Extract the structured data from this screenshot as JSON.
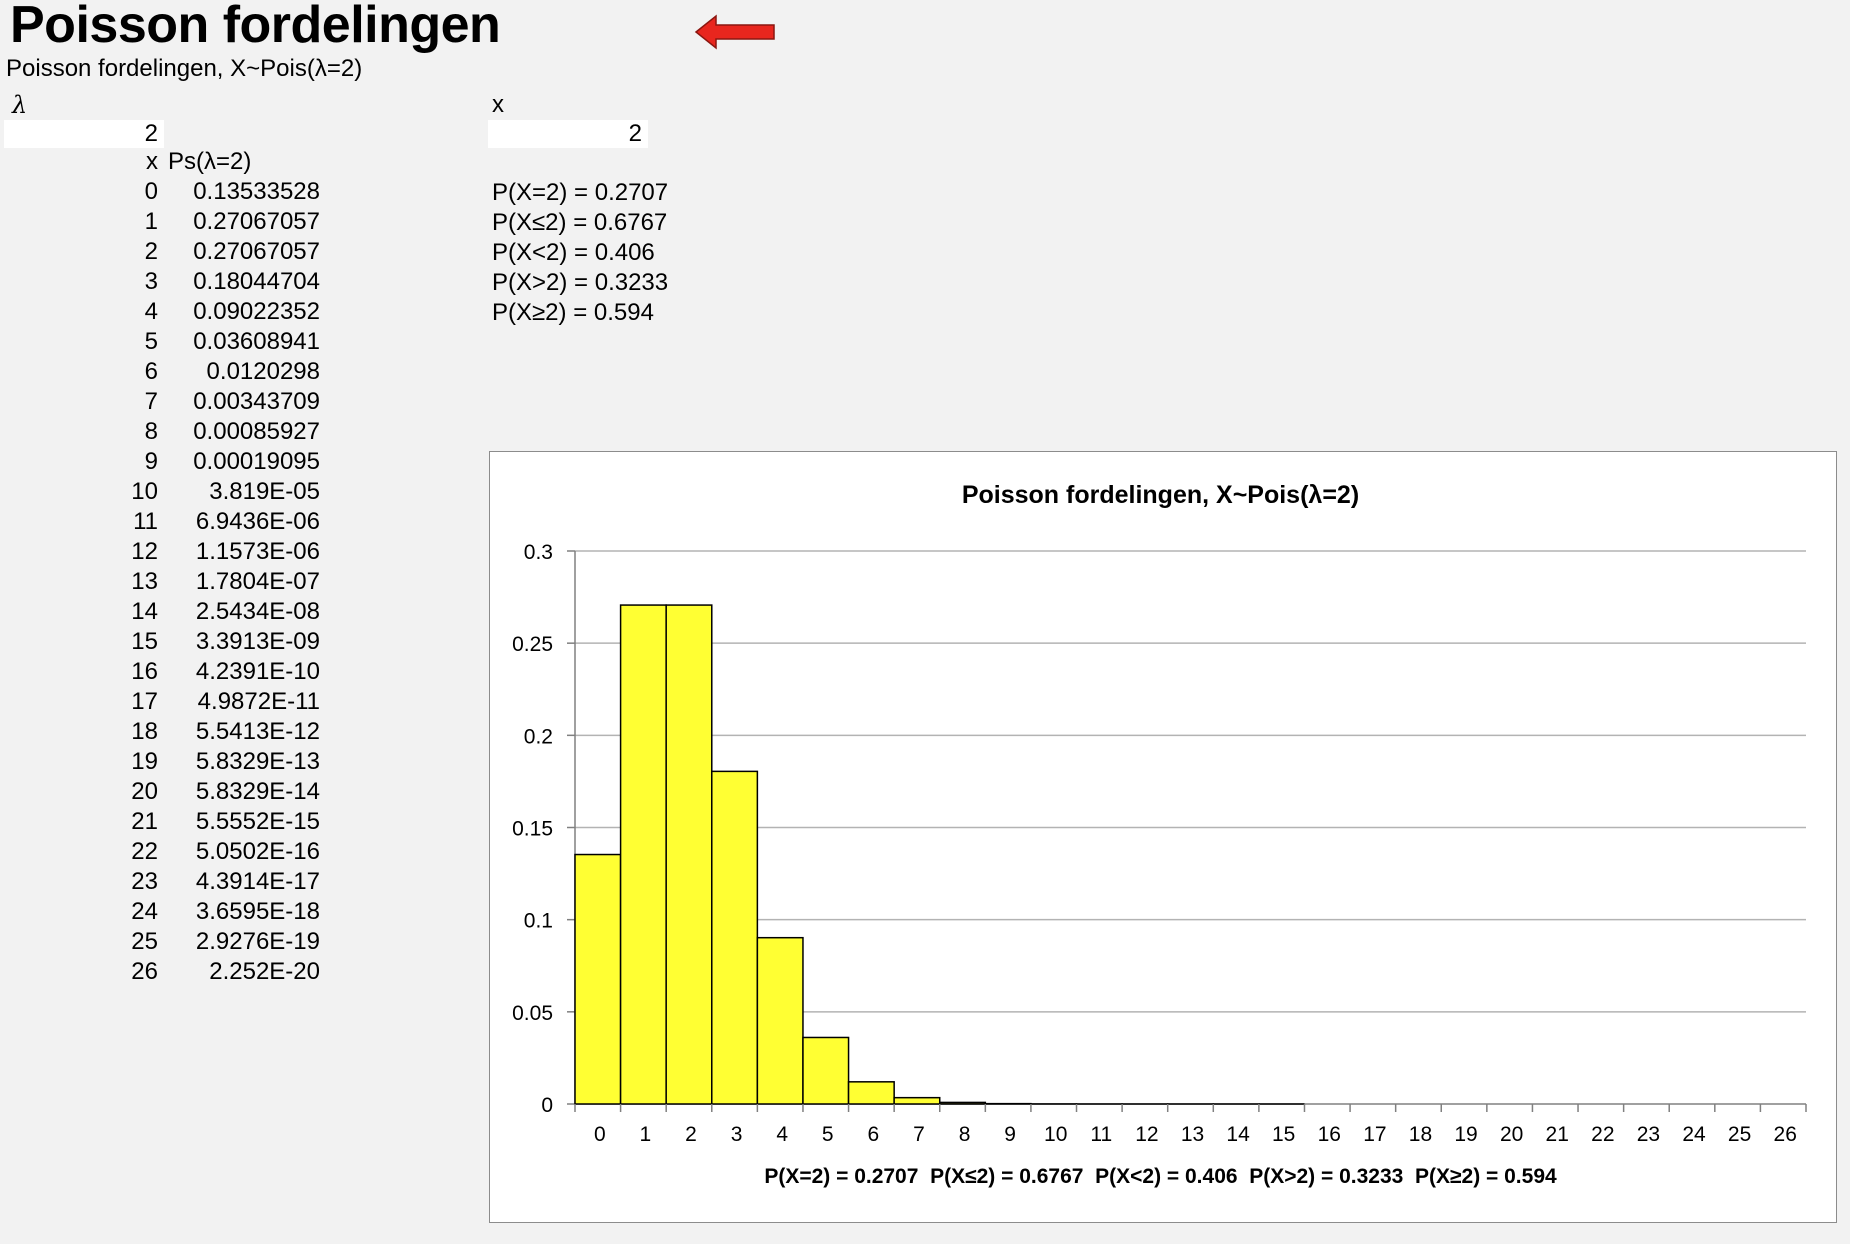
{
  "page": {
    "title": "Poisson fordelingen",
    "subtitle": "Poisson fordelingen, X~Pois(λ=2)"
  },
  "inputs": {
    "lambda_label": "λ",
    "lambda_value": "2",
    "x_label": "x",
    "x_value": "2"
  },
  "table": {
    "header_x": "x",
    "header_p": "Ps(λ=2)",
    "rows": [
      {
        "x": "0",
        "p": "0.13533528"
      },
      {
        "x": "1",
        "p": "0.27067057"
      },
      {
        "x": "2",
        "p": "0.27067057"
      },
      {
        "x": "3",
        "p": "0.18044704"
      },
      {
        "x": "4",
        "p": "0.09022352"
      },
      {
        "x": "5",
        "p": "0.03608941"
      },
      {
        "x": "6",
        "p": "0.0120298"
      },
      {
        "x": "7",
        "p": "0.00343709"
      },
      {
        "x": "8",
        "p": "0.00085927"
      },
      {
        "x": "9",
        "p": "0.00019095"
      },
      {
        "x": "10",
        "p": "3.819E-05"
      },
      {
        "x": "11",
        "p": "6.9436E-06"
      },
      {
        "x": "12",
        "p": "1.1573E-06"
      },
      {
        "x": "13",
        "p": "1.7804E-07"
      },
      {
        "x": "14",
        "p": "2.5434E-08"
      },
      {
        "x": "15",
        "p": "3.3913E-09"
      },
      {
        "x": "16",
        "p": "4.2391E-10"
      },
      {
        "x": "17",
        "p": "4.9872E-11"
      },
      {
        "x": "18",
        "p": "5.5413E-12"
      },
      {
        "x": "19",
        "p": "5.8329E-13"
      },
      {
        "x": "20",
        "p": "5.8329E-14"
      },
      {
        "x": "21",
        "p": "5.5552E-15"
      },
      {
        "x": "22",
        "p": "5.0502E-16"
      },
      {
        "x": "23",
        "p": "4.3914E-17"
      },
      {
        "x": "24",
        "p": "3.6595E-18"
      },
      {
        "x": "25",
        "p": "2.9276E-19"
      },
      {
        "x": "26",
        "p": "2.252E-20"
      }
    ]
  },
  "probabilities": {
    "eq": "P(X=2) = 0.2707",
    "le": "P(X≤2) = 0.6767",
    "lt": "P(X<2) = 0.406",
    "gt": "P(X>2) = 0.3233",
    "ge": "P(X≥2) = 0.594"
  },
  "colors": {
    "bar_fill": "#ffff33",
    "bar_stroke": "#000000",
    "gridline": "#b3b3b3",
    "arrow": "#e8261e",
    "background": "#f2f2f2"
  },
  "icons": {
    "arrow": "left-arrow-icon"
  },
  "chart_data": {
    "type": "bar",
    "title": "Poisson fordelingen, X~Pois(λ=2)",
    "xlabel": "P(X=2) = 0.2707  P(X≤2) = 0.6767  P(X<2) = 0.406  P(X>2) = 0.3233  P(X≥2) = 0.594",
    "ylabel": "",
    "categories": [
      "0",
      "1",
      "2",
      "3",
      "4",
      "5",
      "6",
      "7",
      "8",
      "9",
      "10",
      "11",
      "12",
      "13",
      "14",
      "15",
      "16",
      "17",
      "18",
      "19",
      "20",
      "21",
      "22",
      "23",
      "24",
      "25",
      "26"
    ],
    "values": [
      0.13533528,
      0.27067057,
      0.27067057,
      0.18044704,
      0.09022352,
      0.03608941,
      0.0120298,
      0.00343709,
      0.00085927,
      0.00019095,
      3.819e-05,
      6.9436e-06,
      1.1573e-06,
      1.7804e-07,
      2.5434e-08,
      3.3913e-09,
      4.2391e-10,
      4.9872e-11,
      5.5413e-12,
      5.8329e-13,
      5.8329e-14,
      5.5552e-15,
      5.0502e-16,
      4.3914e-17,
      3.6595e-18,
      2.9276e-19,
      2.252e-20
    ],
    "ylim": [
      0,
      0.3
    ],
    "yticks": [
      "0",
      "0.05",
      "0.1",
      "0.15",
      "0.2",
      "0.25",
      "0.3"
    ],
    "grid": true,
    "legend": "none"
  }
}
